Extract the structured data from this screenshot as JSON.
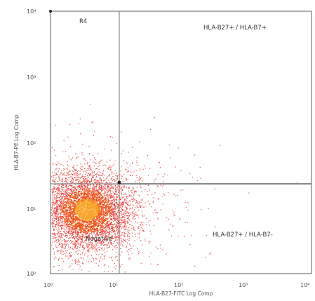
{
  "chart_data": {
    "type": "scatter",
    "x_scale": "log",
    "y_scale": "log",
    "xlim": [
      1,
      10000
    ],
    "ylim": [
      1,
      10000
    ],
    "x_ticks": [
      "10⁰",
      "10¹",
      "10²",
      "10³",
      "10⁴"
    ],
    "y_ticks": [
      "10⁰",
      "10¹",
      "10²",
      "10³",
      "10⁴"
    ],
    "xlabel": "HLA-B27-FITC Log Comp",
    "ylabel": "HLA-B7-PE Log Comp",
    "gates": {
      "x": 1.25,
      "y": 1.5
    },
    "quadrant_labels": {
      "top_left": "R4",
      "top_right": "HLA-B27+ / HLA-B7+",
      "bottom_left": "Negative",
      "bottom_right": "HLA-B27+ / HLA-B7-"
    },
    "population": {
      "center_x": 3.5,
      "center_y": 0.7,
      "event_count_estimate": 6000
    },
    "colors": {
      "low_density": "#e8302a",
      "mid_density": "#f04a10",
      "high_density": "#f8a020",
      "gate_line": "#888888"
    }
  }
}
